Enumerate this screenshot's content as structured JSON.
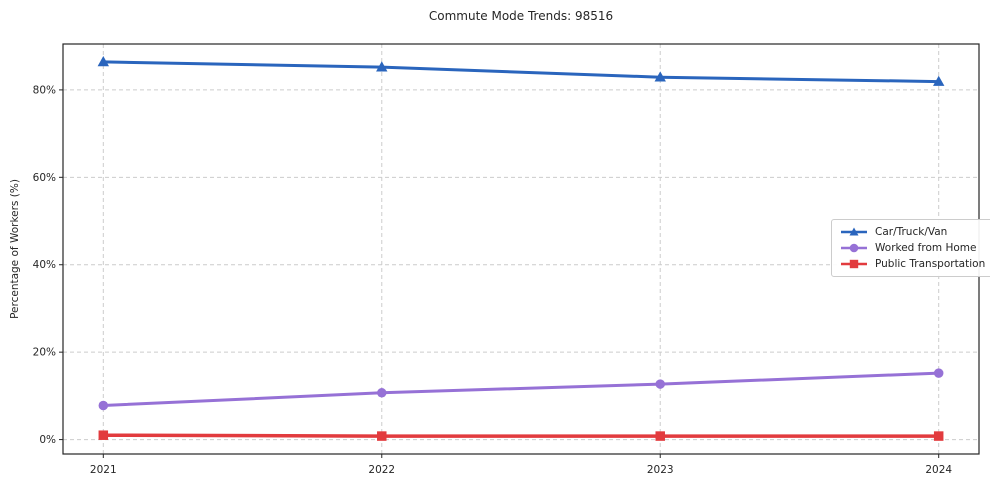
{
  "title": "Commute Mode Trends: 98516",
  "chart_data": {
    "type": "line",
    "title": "Commute Mode Trends: 98516",
    "xlabel": "",
    "ylabel": "Percentage of Workers (%)",
    "categories": [
      "2021",
      "2022",
      "2023",
      "2024"
    ],
    "series": [
      {
        "name": "Car/Truck/Van",
        "marker": "triangle",
        "color": "#2a65bd",
        "values": [
          86.4,
          85.2,
          82.9,
          81.9
        ]
      },
      {
        "name": "Worked from Home",
        "marker": "circle",
        "color": "#9671d6",
        "values": [
          7.8,
          10.7,
          12.7,
          15.2
        ]
      },
      {
        "name": "Public Transportation",
        "marker": "square",
        "color": "#e23b3e",
        "values": [
          1.0,
          0.8,
          0.8,
          0.8
        ]
      }
    ],
    "y_ticks": [
      0,
      20,
      40,
      60,
      80
    ],
    "y_tick_labels": [
      "0%",
      "20%",
      "40%",
      "60%",
      "80%"
    ],
    "ylim": [
      -3.3,
      90.5
    ],
    "grid": true,
    "legend_position": "center right"
  },
  "colors": {
    "background": "#ffffff",
    "grid": "#cccccc",
    "axis": "#262626",
    "text": "#262626",
    "legend_border": "#cccccc"
  }
}
